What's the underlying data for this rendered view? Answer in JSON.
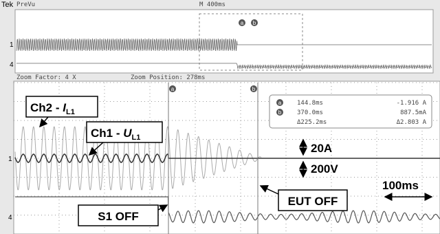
{
  "header": {
    "brand": "Tek",
    "mode": "PreVu",
    "timebase": "M 400ms"
  },
  "zoom": {
    "factor": "Zoom Factor: 4 X",
    "position": "Zoom Position: 278ms"
  },
  "cursors": {
    "a": "a",
    "b": "b",
    "rows": [
      [
        "144.8ms",
        "-1.916 A"
      ],
      [
        "370.0ms",
        "887.5mA"
      ],
      [
        "Δ225.2ms",
        "Δ2.803 A"
      ]
    ]
  },
  "channels": {
    "ch1": "1",
    "ch4": "4"
  },
  "annotations": {
    "current": {
      "prefix": "Ch2 - ",
      "symbol": "I",
      "sub": "L1"
    },
    "voltage": {
      "prefix": "Ch1 - ",
      "symbol": "U",
      "sub": "L1"
    },
    "current_scale": "20A",
    "voltage_scale": "200V",
    "time_scale": "100ms",
    "s1": "S1 OFF",
    "eut": "EUT OFF"
  }
}
